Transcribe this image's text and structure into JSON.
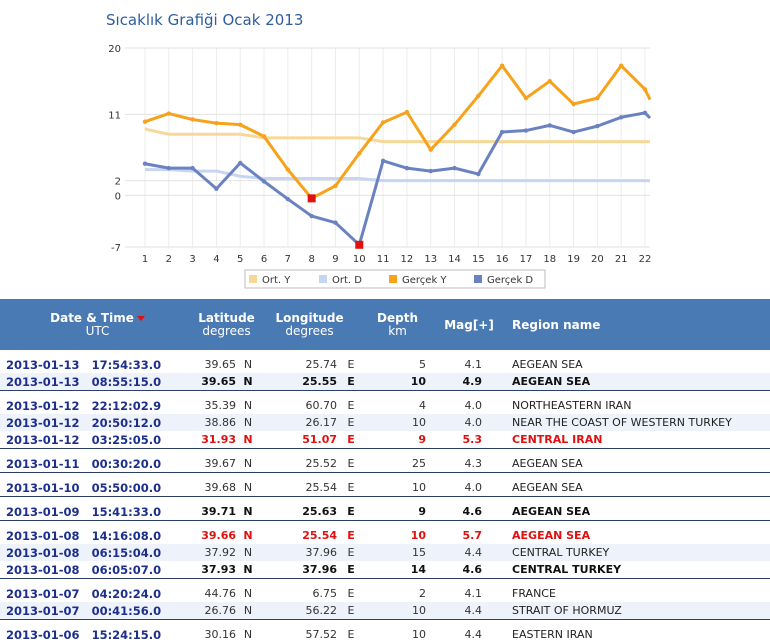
{
  "chart_data": {
    "type": "line",
    "title": "Sıcaklık Grafiği Ocak 2013",
    "x": [
      1,
      2,
      3,
      4,
      5,
      6,
      7,
      8,
      9,
      10,
      11,
      12,
      13,
      14,
      15,
      16,
      17,
      18,
      19,
      20,
      21,
      22
    ],
    "y_ticks": [
      "20",
      "11",
      "2",
      "0",
      "-7"
    ],
    "ylim": [
      -7,
      20
    ],
    "series": [
      {
        "name": "Ort. Y",
        "color": "#f8d898",
        "values": [
          9,
          8.3,
          8.3,
          8.3,
          8.3,
          7.8,
          7.8,
          7.8,
          7.8,
          7.8,
          7.3,
          7.3,
          7.3,
          7.3,
          7.3,
          7.3,
          7.3,
          7.3,
          7.3,
          7.3,
          7.3,
          7.3
        ]
      },
      {
        "name": "Ort. D",
        "color": "#c6d6f2",
        "values": [
          3.5,
          3.5,
          3.3,
          3.3,
          2.6,
          2.3,
          2.3,
          2.3,
          2.3,
          2.3,
          2,
          2,
          2,
          2,
          2,
          2,
          2,
          2,
          2,
          2,
          2,
          2
        ]
      },
      {
        "name": "Gerçek Y",
        "color": "#f7a21b",
        "values": [
          10,
          11.1,
          10.3,
          9.8,
          9.6,
          8,
          3.5,
          -0.4,
          1.3,
          5.7,
          9.9,
          11.3,
          6.2,
          9.6,
          13.5,
          17.6,
          13.2,
          15.5,
          12.4,
          13.2,
          17.6,
          14.4
        ]
      },
      {
        "name": "Gerçek D",
        "color": "#6a82c2",
        "values": [
          4.3,
          3.7,
          3.7,
          0.9,
          4.4,
          1.9,
          -0.5,
          -2.8,
          -3.7,
          -6.7,
          4.7,
          3.7,
          3.3,
          3.7,
          2.9,
          8.6,
          8.8,
          9.5,
          8.6,
          9.4,
          10.6,
          11.2
        ]
      }
    ],
    "markers": [
      {
        "series": "Gerçek Y",
        "x": 8,
        "y": -0.4,
        "color": "#e01010"
      },
      {
        "series": "Gerçek D",
        "x": 10,
        "y": -6.7,
        "color": "#e01010"
      }
    ],
    "legend_position": "bottom-center",
    "grid": true
  },
  "table": {
    "headers": {
      "date_main": "Date & Time",
      "date_sub": "UTC",
      "lat_main": "Latitude",
      "lat_sub": "degrees",
      "lon_main": "Longitude",
      "lon_sub": "degrees",
      "depth_main": "Depth",
      "depth_sub": "km",
      "mag": "Mag[+]",
      "region": "Region name"
    },
    "groups": [
      [
        {
          "date": "2013-01-13",
          "time": "17:54:33.0",
          "lat": "39.65",
          "ns": "N",
          "lon": "25.74",
          "ew": "E",
          "depth": "5",
          "mag": "4.1",
          "region": "AEGEAN SEA",
          "style": "normal"
        },
        {
          "date": "2013-01-13",
          "time": "08:55:15.0",
          "lat": "39.65",
          "ns": "N",
          "lon": "25.55",
          "ew": "E",
          "depth": "10",
          "mag": "4.9",
          "region": "AEGEAN SEA",
          "style": "bold"
        }
      ],
      [
        {
          "date": "2013-01-12",
          "time": "22:12:02.9",
          "lat": "35.39",
          "ns": "N",
          "lon": "60.70",
          "ew": "E",
          "depth": "4",
          "mag": "4.0",
          "region": "NORTHEASTERN IRAN",
          "style": "normal"
        },
        {
          "date": "2013-01-12",
          "time": "20:50:12.0",
          "lat": "38.86",
          "ns": "N",
          "lon": "26.17",
          "ew": "E",
          "depth": "10",
          "mag": "4.0",
          "region": "NEAR THE COAST OF WESTERN TURKEY",
          "style": "normal"
        },
        {
          "date": "2013-01-12",
          "time": "03:25:05.0",
          "lat": "31.93",
          "ns": "N",
          "lon": "51.07",
          "ew": "E",
          "depth": "9",
          "mag": "5.3",
          "region": "CENTRAL IRAN",
          "style": "red"
        }
      ],
      [
        {
          "date": "2013-01-11",
          "time": "00:30:20.0",
          "lat": "39.67",
          "ns": "N",
          "lon": "25.52",
          "ew": "E",
          "depth": "25",
          "mag": "4.3",
          "region": "AEGEAN SEA",
          "style": "normal"
        }
      ],
      [
        {
          "date": "2013-01-10",
          "time": "05:50:00.0",
          "lat": "39.68",
          "ns": "N",
          "lon": "25.54",
          "ew": "E",
          "depth": "10",
          "mag": "4.0",
          "region": "AEGEAN SEA",
          "style": "normal"
        }
      ],
      [
        {
          "date": "2013-01-09",
          "time": "15:41:33.0",
          "lat": "39.71",
          "ns": "N",
          "lon": "25.63",
          "ew": "E",
          "depth": "9",
          "mag": "4.6",
          "region": "AEGEAN SEA",
          "style": "bold"
        }
      ],
      [
        {
          "date": "2013-01-08",
          "time": "14:16:08.0",
          "lat": "39.66",
          "ns": "N",
          "lon": "25.54",
          "ew": "E",
          "depth": "10",
          "mag": "5.7",
          "region": "AEGEAN SEA",
          "style": "red"
        },
        {
          "date": "2013-01-08",
          "time": "06:15:04.0",
          "lat": "37.92",
          "ns": "N",
          "lon": "37.96",
          "ew": "E",
          "depth": "15",
          "mag": "4.4",
          "region": "CENTRAL TURKEY",
          "style": "normal"
        },
        {
          "date": "2013-01-08",
          "time": "06:05:07.0",
          "lat": "37.93",
          "ns": "N",
          "lon": "37.96",
          "ew": "E",
          "depth": "14",
          "mag": "4.6",
          "region": "CENTRAL TURKEY",
          "style": "bold"
        }
      ],
      [
        {
          "date": "2013-01-07",
          "time": "04:20:24.0",
          "lat": "44.76",
          "ns": "N",
          "lon": "6.75",
          "ew": "E",
          "depth": "2",
          "mag": "4.1",
          "region": "FRANCE",
          "style": "normal"
        },
        {
          "date": "2013-01-07",
          "time": "00:41:56.0",
          "lat": "26.76",
          "ns": "N",
          "lon": "56.22",
          "ew": "E",
          "depth": "10",
          "mag": "4.4",
          "region": "STRAIT OF HORMUZ",
          "style": "normal"
        }
      ],
      [
        {
          "date": "2013-01-06",
          "time": "15:24:15.0",
          "lat": "30.16",
          "ns": "N",
          "lon": "57.52",
          "ew": "E",
          "depth": "10",
          "mag": "4.4",
          "region": "EASTERN IRAN",
          "style": "normal"
        }
      ]
    ]
  }
}
